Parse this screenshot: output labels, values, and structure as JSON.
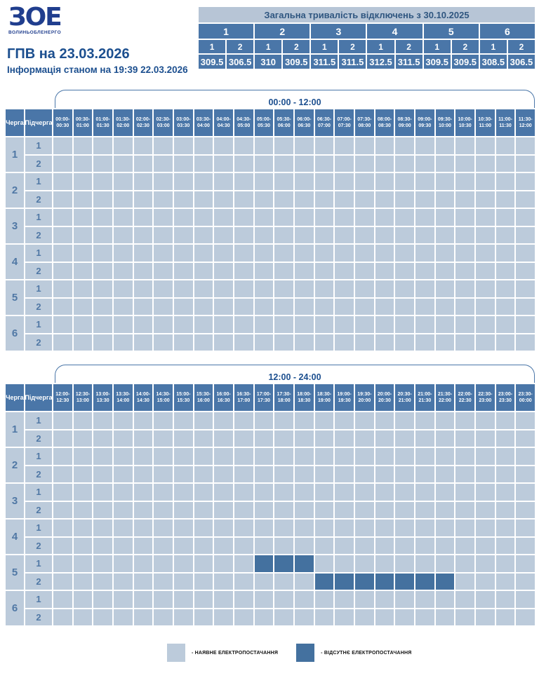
{
  "logo": {
    "acronym": "ЗОЕ",
    "company": "ВОЛИНЬОБЛЕНЕРГО"
  },
  "page": {
    "title": "ГПВ на 23.03.2026",
    "status_line": "Інформація станом на 19:39 22.03.2026"
  },
  "summary": {
    "title": "Загальна тривалість відключень з 30.10.2025",
    "queues": [
      "1",
      "2",
      "3",
      "4",
      "5",
      "6"
    ],
    "subqueue_labels": [
      "1",
      "2",
      "1",
      "2",
      "1",
      "2",
      "1",
      "2",
      "1",
      "2",
      "1",
      "2"
    ],
    "totals": [
      "309.5",
      "306.5",
      "310",
      "309.5",
      "311.5",
      "311.5",
      "312.5",
      "311.5",
      "309.5",
      "309.5",
      "308.5",
      "306.5"
    ]
  },
  "schedule": {
    "col_queue": "Черга",
    "col_subqueue": "Підчерга",
    "queues": [
      "1",
      "2",
      "3",
      "4",
      "5",
      "6"
    ],
    "subqueues": [
      "1",
      "2"
    ],
    "tables": [
      {
        "period": "00:00 - 12:00",
        "slots": [
          "00:00-00:30",
          "00:30-01:00",
          "01:00-01:30",
          "01:30-02:00",
          "02:00-02:30",
          "02:30-03:00",
          "03:00-03:30",
          "03:30-04:00",
          "04:00-04:30",
          "04:30-05:00",
          "05:00-05:30",
          "05:30-06:00",
          "06:00-06:30",
          "06:30-07:00",
          "07:00-07:30",
          "07:30-08:00",
          "08:00-08:30",
          "08:30-09:00",
          "09:00-09:30",
          "09:30-10:00",
          "10:00-10:30",
          "10:30-11:00",
          "11:00-11:30",
          "11:30-12:00"
        ],
        "outages": []
      },
      {
        "period": "12:00 - 24:00",
        "slots": [
          "12:00-12:30",
          "12:30-13:00",
          "13:00-13:30",
          "13:30-14:00",
          "14:00-14:30",
          "14:30-15:00",
          "15:00-15:30",
          "15:30-16:00",
          "16:00-16:30",
          "16:30-17:00",
          "17:00-17:30",
          "17:30-18:00",
          "18:00-18:30",
          "18:30-19:00",
          "19:00-19:30",
          "19:30-20:00",
          "20:00-20:30",
          "20:30-21:00",
          "21:00-21:30",
          "21:30-22:00",
          "22:00-22:30",
          "22:30-23:00",
          "23:00-23:30",
          "23:30-00:00"
        ],
        "outages": [
          {
            "queue": "5",
            "subqueue": "1",
            "slots": [
              "17:00-17:30",
              "17:30-18:00",
              "18:00-18:30"
            ]
          },
          {
            "queue": "5",
            "subqueue": "2",
            "slots": [
              "18:30-19:00",
              "19:00-19:30",
              "19:30-20:00",
              "20:00-20:30",
              "20:30-21:00",
              "21:00-21:30",
              "21:30-22:00"
            ]
          }
        ]
      }
    ]
  },
  "legend": {
    "items": [
      {
        "label": "- НАЯВНЕ ЕЛЕКТРОПОСТАЧАННЯ",
        "state": "available",
        "color": "#bccbdb"
      },
      {
        "label": "- ВІДСУТНЄ ЕЛЕКТРОПОСТАЧАННЯ",
        "state": "absent",
        "color": "#44719f"
      }
    ]
  },
  "colors": {
    "header_blue": "#4a76a8",
    "cell_available": "#bccbdb",
    "cell_absent": "#44719f",
    "summary_title_bg": "#b7c5d6",
    "title_text": "#1c4f8f",
    "logo_navy": "#203e8e"
  }
}
